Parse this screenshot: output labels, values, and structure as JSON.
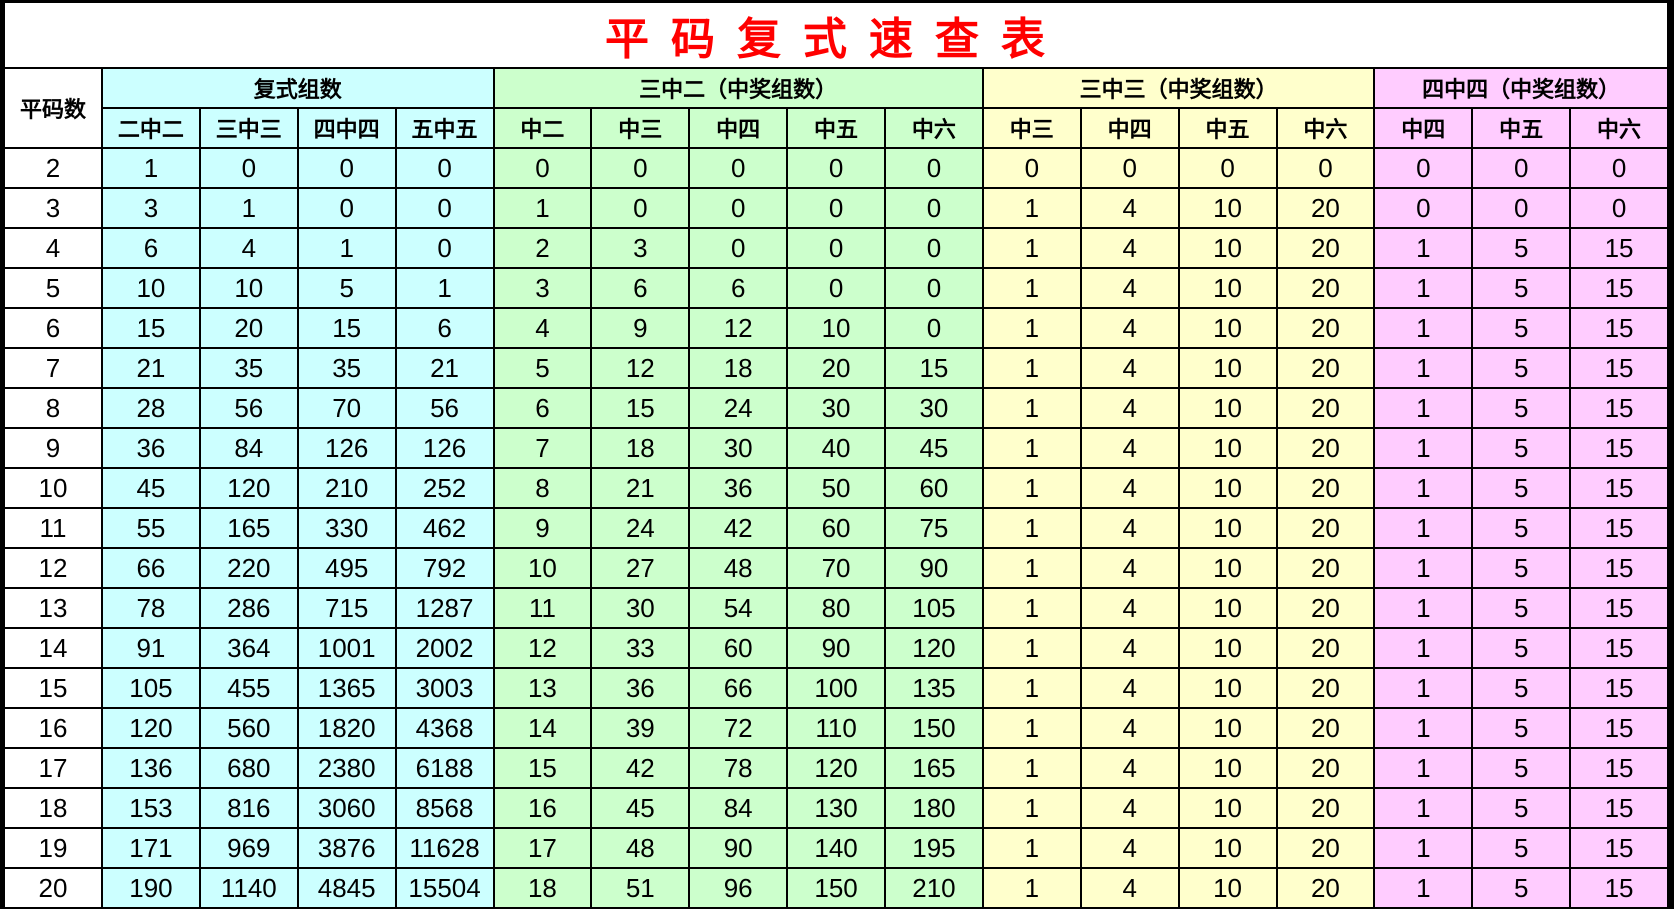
{
  "title": "平码复式速查表",
  "colors": {
    "group1": "#ccffff",
    "group2": "#ccffcc",
    "group3": "#ffffcc",
    "group4": "#ffccff",
    "title": "#ff0000"
  },
  "header": {
    "row_label": "平码数",
    "groups": [
      {
        "label": "复式组数",
        "columns": [
          "二中二",
          "三中三",
          "四中四",
          "五中五"
        ]
      },
      {
        "label": "三中二（中奖组数）",
        "columns": [
          "中二",
          "中三",
          "中四",
          "中五",
          "中六"
        ]
      },
      {
        "label": "三中三（中奖组数）",
        "columns": [
          "中三",
          "中四",
          "中五",
          "中六"
        ]
      },
      {
        "label": "四中四（中奖组数）",
        "columns": [
          "中四",
          "中五",
          "中六"
        ]
      }
    ]
  },
  "rows": [
    [
      "2",
      "1",
      "0",
      "0",
      "0",
      "0",
      "0",
      "0",
      "0",
      "0",
      "0",
      "0",
      "0",
      "0",
      "0",
      "0",
      "0"
    ],
    [
      "3",
      "3",
      "1",
      "0",
      "0",
      "1",
      "0",
      "0",
      "0",
      "0",
      "1",
      "4",
      "10",
      "20",
      "0",
      "0",
      "0"
    ],
    [
      "4",
      "6",
      "4",
      "1",
      "0",
      "2",
      "3",
      "0",
      "0",
      "0",
      "1",
      "4",
      "10",
      "20",
      "1",
      "5",
      "15"
    ],
    [
      "5",
      "10",
      "10",
      "5",
      "1",
      "3",
      "6",
      "6",
      "0",
      "0",
      "1",
      "4",
      "10",
      "20",
      "1",
      "5",
      "15"
    ],
    [
      "6",
      "15",
      "20",
      "15",
      "6",
      "4",
      "9",
      "12",
      "10",
      "0",
      "1",
      "4",
      "10",
      "20",
      "1",
      "5",
      "15"
    ],
    [
      "7",
      "21",
      "35",
      "35",
      "21",
      "5",
      "12",
      "18",
      "20",
      "15",
      "1",
      "4",
      "10",
      "20",
      "1",
      "5",
      "15"
    ],
    [
      "8",
      "28",
      "56",
      "70",
      "56",
      "6",
      "15",
      "24",
      "30",
      "30",
      "1",
      "4",
      "10",
      "20",
      "1",
      "5",
      "15"
    ],
    [
      "9",
      "36",
      "84",
      "126",
      "126",
      "7",
      "18",
      "30",
      "40",
      "45",
      "1",
      "4",
      "10",
      "20",
      "1",
      "5",
      "15"
    ],
    [
      "10",
      "45",
      "120",
      "210",
      "252",
      "8",
      "21",
      "36",
      "50",
      "60",
      "1",
      "4",
      "10",
      "20",
      "1",
      "5",
      "15"
    ],
    [
      "11",
      "55",
      "165",
      "330",
      "462",
      "9",
      "24",
      "42",
      "60",
      "75",
      "1",
      "4",
      "10",
      "20",
      "1",
      "5",
      "15"
    ],
    [
      "12",
      "66",
      "220",
      "495",
      "792",
      "10",
      "27",
      "48",
      "70",
      "90",
      "1",
      "4",
      "10",
      "20",
      "1",
      "5",
      "15"
    ],
    [
      "13",
      "78",
      "286",
      "715",
      "1287",
      "11",
      "30",
      "54",
      "80",
      "105",
      "1",
      "4",
      "10",
      "20",
      "1",
      "5",
      "15"
    ],
    [
      "14",
      "91",
      "364",
      "1001",
      "2002",
      "12",
      "33",
      "60",
      "90",
      "120",
      "1",
      "4",
      "10",
      "20",
      "1",
      "5",
      "15"
    ],
    [
      "15",
      "105",
      "455",
      "1365",
      "3003",
      "13",
      "36",
      "66",
      "100",
      "135",
      "1",
      "4",
      "10",
      "20",
      "1",
      "5",
      "15"
    ],
    [
      "16",
      "120",
      "560",
      "1820",
      "4368",
      "14",
      "39",
      "72",
      "110",
      "150",
      "1",
      "4",
      "10",
      "20",
      "1",
      "5",
      "15"
    ],
    [
      "17",
      "136",
      "680",
      "2380",
      "6188",
      "15",
      "42",
      "78",
      "120",
      "165",
      "1",
      "4",
      "10",
      "20",
      "1",
      "5",
      "15"
    ],
    [
      "18",
      "153",
      "816",
      "3060",
      "8568",
      "16",
      "45",
      "84",
      "130",
      "180",
      "1",
      "4",
      "10",
      "20",
      "1",
      "5",
      "15"
    ],
    [
      "19",
      "171",
      "969",
      "3876",
      "11628",
      "17",
      "48",
      "90",
      "140",
      "195",
      "1",
      "4",
      "10",
      "20",
      "1",
      "5",
      "15"
    ],
    [
      "20",
      "190",
      "1140",
      "4845",
      "15504",
      "18",
      "51",
      "96",
      "150",
      "210",
      "1",
      "4",
      "10",
      "20",
      "1",
      "5",
      "15"
    ]
  ]
}
